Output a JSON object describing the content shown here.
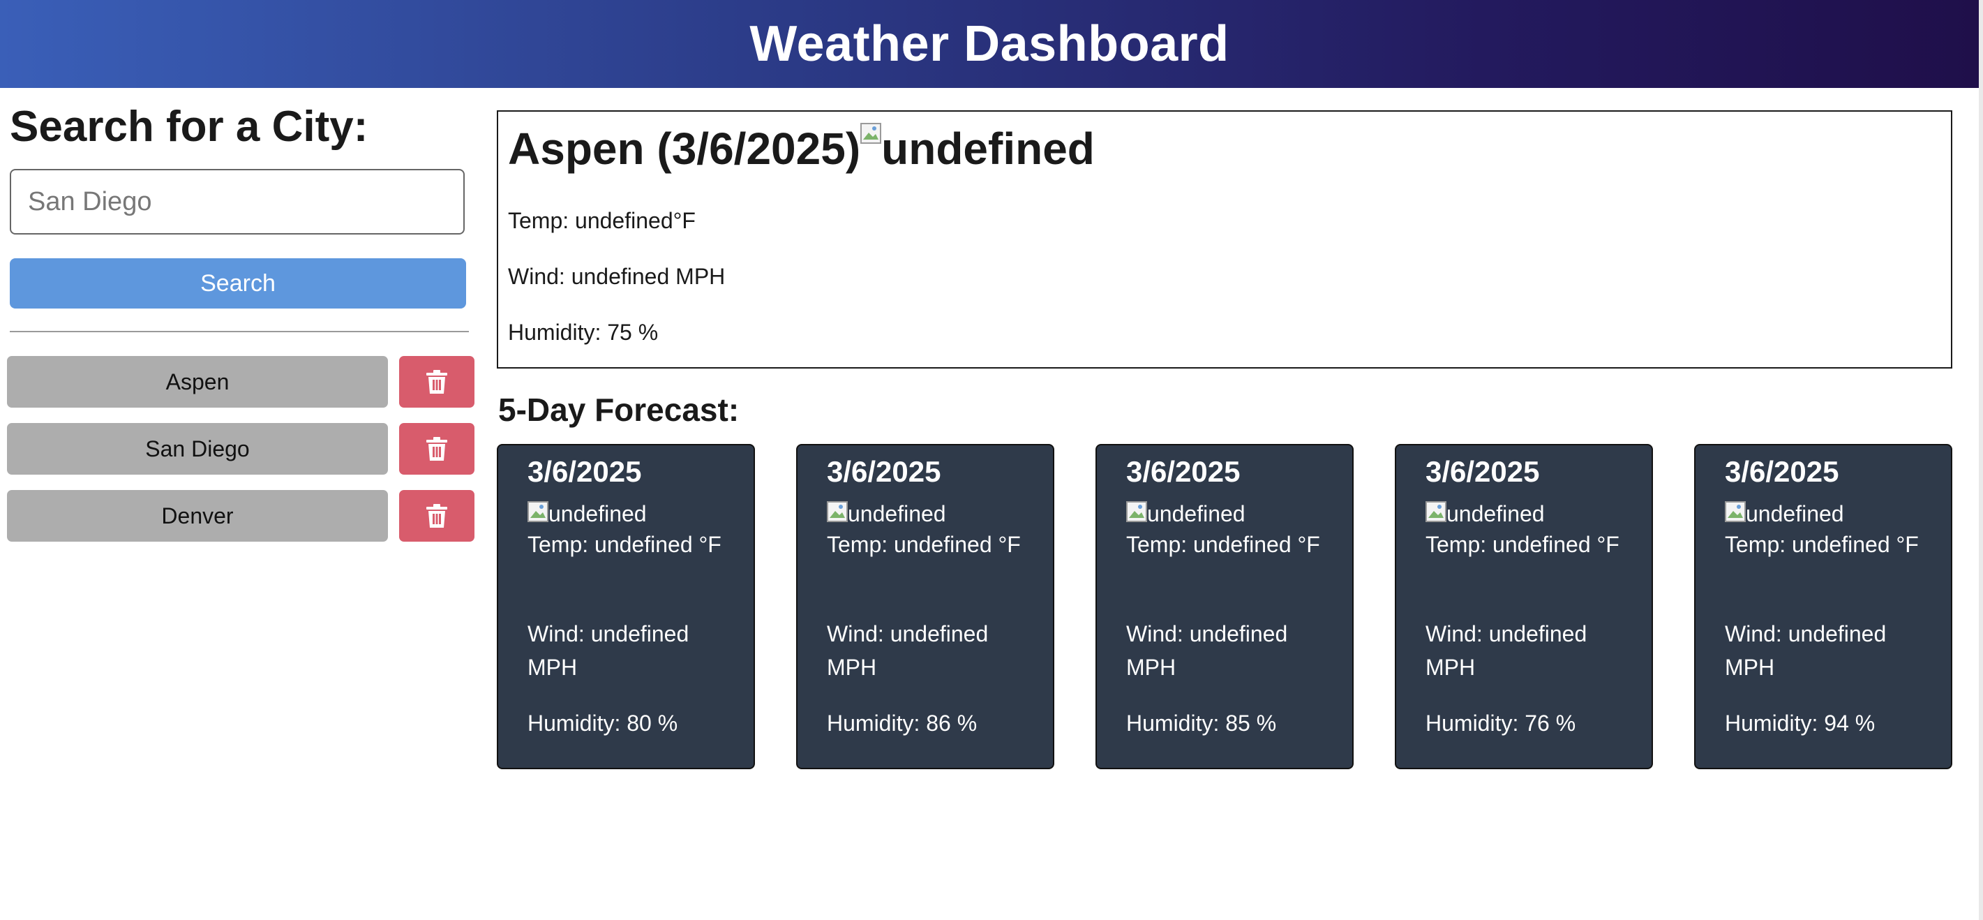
{
  "header": {
    "title": "Weather Dashboard"
  },
  "sidebar": {
    "title": "Search for a City:",
    "input": {
      "value": "",
      "placeholder": "San Diego"
    },
    "search_label": "Search",
    "history": [
      {
        "city": "Aspen",
        "delete_icon": "trash-icon"
      },
      {
        "city": "San Diego",
        "delete_icon": "trash-icon"
      },
      {
        "city": "Denver",
        "delete_icon": "trash-icon"
      }
    ]
  },
  "today": {
    "heading": "Aspen (3/6/2025)",
    "icon_alt": "undefined",
    "temp": "Temp: undefined°F",
    "wind": "Wind: undefined MPH",
    "humidity": "Humidity: 75 %"
  },
  "forecast": {
    "title": "5-Day Forecast:",
    "days": [
      {
        "date": "3/6/2025",
        "icon_alt": "undefined",
        "temp": "Temp: undefined °F",
        "wind": "Wind: undefined MPH",
        "humidity": "Humidity: 80 %"
      },
      {
        "date": "3/6/2025",
        "icon_alt": "undefined",
        "temp": "Temp: undefined °F",
        "wind": "Wind: undefined MPH",
        "humidity": "Humidity: 86 %"
      },
      {
        "date": "3/6/2025",
        "icon_alt": "undefined",
        "temp": "Temp: undefined °F",
        "wind": "Wind: undefined MPH",
        "humidity": "Humidity: 85 %"
      },
      {
        "date": "3/6/2025",
        "icon_alt": "undefined",
        "temp": "Temp: undefined °F",
        "wind": "Wind: undefined MPH",
        "humidity": "Humidity: 76 %"
      },
      {
        "date": "3/6/2025",
        "icon_alt": "undefined",
        "temp": "Temp: undefined °F",
        "wind": "Wind: undefined MPH",
        "humidity": "Humidity: 94 %"
      }
    ]
  },
  "colors": {
    "header_start": "#3a5fb8",
    "header_end": "#1f0f4a",
    "search_button": "#5e97dd",
    "history_button": "#adadad",
    "delete_button": "#d85c6c",
    "card_background": "#2f3a4a"
  }
}
